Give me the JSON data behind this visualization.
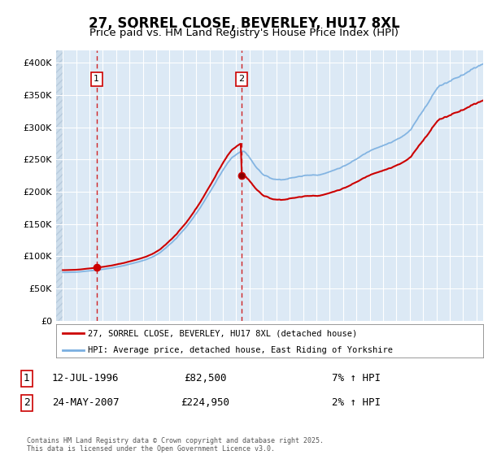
{
  "title": "27, SORREL CLOSE, BEVERLEY, HU17 8XL",
  "subtitle": "Price paid vs. HM Land Registry's House Price Index (HPI)",
  "background_color": "#ffffff",
  "plot_bg_color": "#dce9f5",
  "hatch_color": "#c8d8e8",
  "grid_color": "#ffffff",
  "legend_label_red": "27, SORREL CLOSE, BEVERLEY, HU17 8XL (detached house)",
  "legend_label_blue": "HPI: Average price, detached house, East Riding of Yorkshire",
  "annotation1_date": "12-JUL-1996",
  "annotation1_price": "£82,500",
  "annotation1_hpi": "7% ↑ HPI",
  "annotation1_year": 1996.53,
  "annotation1_value": 82500,
  "annotation2_date": "24-MAY-2007",
  "annotation2_price": "£224,950",
  "annotation2_hpi": "2% ↑ HPI",
  "annotation2_year": 2007.38,
  "annotation2_value": 224950,
  "footer": "Contains HM Land Registry data © Crown copyright and database right 2025.\nThis data is licensed under the Open Government Licence v3.0.",
  "ylim": [
    0,
    420000
  ],
  "xlim": [
    1993.5,
    2025.5
  ],
  "hpi_color": "#7aafe0",
  "price_color": "#cc0000",
  "vline_color": "#cc0000",
  "title_fontsize": 12,
  "subtitle_fontsize": 9.5,
  "yticks": [
    0,
    50000,
    100000,
    150000,
    200000,
    250000,
    300000,
    350000,
    400000
  ]
}
